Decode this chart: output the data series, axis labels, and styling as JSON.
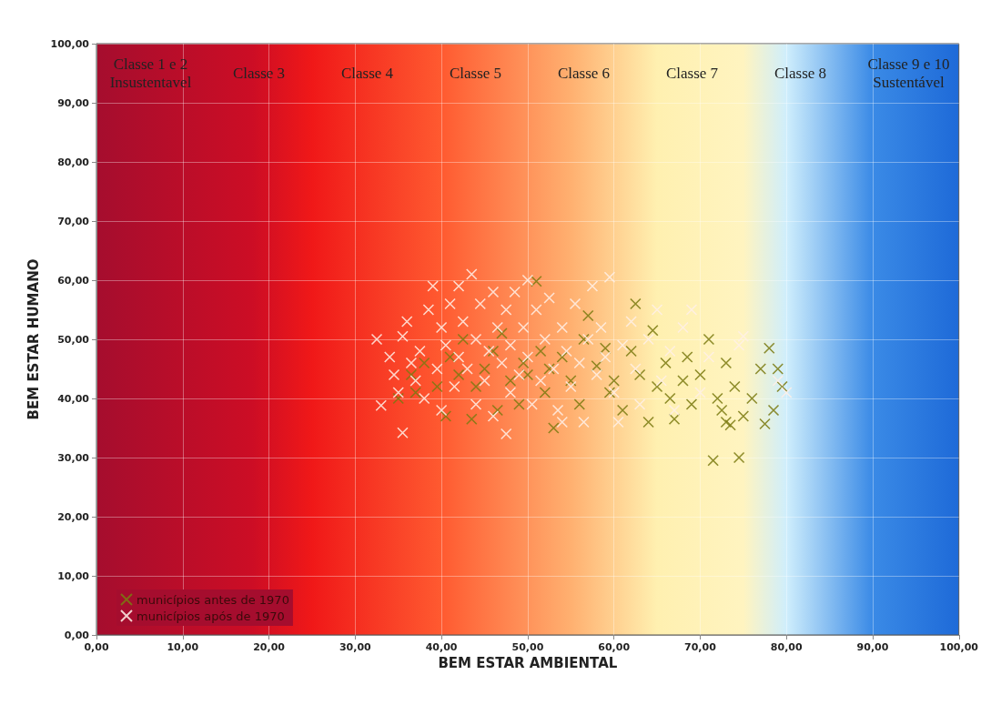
{
  "chart_data": {
    "type": "scatter",
    "xlabel": "BEM ESTAR AMBIENTAL",
    "ylabel": "BEM ESTAR HUMANO",
    "xlim": [
      0,
      100
    ],
    "ylim": [
      0,
      100
    ],
    "xticks": [
      {
        "value": 0,
        "label": "0,00"
      },
      {
        "value": 10,
        "label": "10,00"
      },
      {
        "value": 20,
        "label": "20,00"
      },
      {
        "value": 30,
        "label": "30,00"
      },
      {
        "value": 40,
        "label": "40,00"
      },
      {
        "value": 50,
        "label": "50,00"
      },
      {
        "value": 60,
        "label": "60,00"
      },
      {
        "value": 70,
        "label": "70,00"
      },
      {
        "value": 80,
        "label": "80,00"
      },
      {
        "value": 90,
        "label": "90,00"
      },
      {
        "value": 100,
        "label": "100,00"
      }
    ],
    "yticks": [
      {
        "value": 0,
        "label": "0,00"
      },
      {
        "value": 10,
        "label": "10,00"
      },
      {
        "value": 20,
        "label": "20,00"
      },
      {
        "value": 30,
        "label": "30,00"
      },
      {
        "value": 40,
        "label": "40,00"
      },
      {
        "value": 50,
        "label": "50,00"
      },
      {
        "value": 60,
        "label": "60,00"
      },
      {
        "value": 70,
        "label": "70,00"
      },
      {
        "value": 80,
        "label": "80,00"
      },
      {
        "value": 90,
        "label": "90,00"
      },
      {
        "value": 100,
        "label": "100,00"
      }
    ],
    "grid": true,
    "legend": "bottom left",
    "marker": "cross",
    "annotations": [
      "Classe 1 e 2\nInsustentavel",
      "Classe 3",
      "Classe 4",
      "Classe 5",
      "Classe 6",
      "Classe 7",
      "Classe 8",
      "Classe 9 e 10\nSustentável"
    ],
    "series": [
      {
        "name": "municípios antes de 1970",
        "color": "#7a7a10",
        "x": [
          35,
          36.5,
          37,
          38,
          39.5,
          40.5,
          41,
          42,
          42.5,
          43.5,
          44,
          45,
          46,
          46.5,
          47,
          48,
          49,
          49.5,
          50,
          51,
          51.5,
          52,
          52.5,
          53,
          54,
          55,
          56,
          56.5,
          57,
          58,
          59,
          59.5,
          60,
          61,
          62,
          62.5,
          63,
          64,
          64.5,
          65,
          66,
          66.5,
          67,
          68,
          68.5,
          69,
          70,
          71,
          71.5,
          72,
          72.5,
          73,
          73.5,
          74,
          74.5,
          75,
          76,
          77,
          78,
          78.5,
          79,
          79.5,
          77.5,
          73
        ],
        "values": [
          40,
          44,
          41,
          46,
          42,
          37,
          47,
          44,
          50,
          36.5,
          42,
          45,
          48,
          38,
          51,
          43,
          39,
          46,
          44,
          59.8,
          48,
          41,
          45,
          35,
          47,
          43,
          39,
          50,
          54,
          45.5,
          48.5,
          41,
          43,
          38,
          48,
          56,
          44,
          36,
          51.5,
          42,
          46,
          40,
          36.5,
          43,
          47,
          39,
          44,
          50,
          29.5,
          40,
          38,
          46,
          35.5,
          42,
          30,
          37,
          40,
          45,
          48.5,
          38,
          45,
          42,
          35.7,
          36
        ]
      },
      {
        "name": "municípios após de 1970",
        "color": "#fff0e8",
        "x": [
          32.5,
          33,
          34,
          34.5,
          35,
          35.5,
          35.5,
          36,
          36.5,
          37,
          37.5,
          38,
          38.5,
          39,
          39.5,
          40,
          40,
          40.5,
          41,
          41.5,
          42,
          42,
          42.5,
          43,
          43.5,
          44,
          44,
          44.5,
          45,
          45.5,
          46,
          46,
          46.5,
          47,
          47.5,
          48,
          48,
          48.5,
          49,
          49.5,
          50,
          50,
          50.5,
          51,
          51.5,
          52,
          52.5,
          53,
          53.5,
          54,
          54.5,
          55,
          55.5,
          56,
          56.5,
          57,
          57.5,
          58,
          58.5,
          59,
          59.5,
          60,
          61,
          62,
          62.5,
          63,
          64,
          65,
          65.5,
          66.5,
          67,
          68,
          69,
          70,
          71,
          74.5,
          75,
          79,
          80,
          60.5,
          47.5,
          54
        ],
        "values": [
          50,
          38.8,
          47,
          44,
          41,
          34.2,
          50.5,
          53,
          46,
          43,
          48,
          40,
          55,
          59,
          45,
          52,
          38,
          49,
          56,
          42,
          47,
          59,
          53,
          45,
          61,
          50,
          39,
          56,
          43,
          48,
          58,
          37,
          52,
          46,
          55,
          41,
          49,
          58,
          44,
          52,
          60,
          47,
          39,
          55,
          43,
          50,
          57,
          45,
          38,
          52,
          48,
          42,
          56,
          46,
          36,
          50,
          59,
          44,
          52,
          47,
          60.5,
          41,
          49,
          53,
          45,
          39,
          50,
          55,
          43,
          48,
          38,
          52,
          55,
          41,
          47,
          49,
          50.5,
          43,
          41,
          36,
          34,
          36
        ]
      }
    ]
  }
}
